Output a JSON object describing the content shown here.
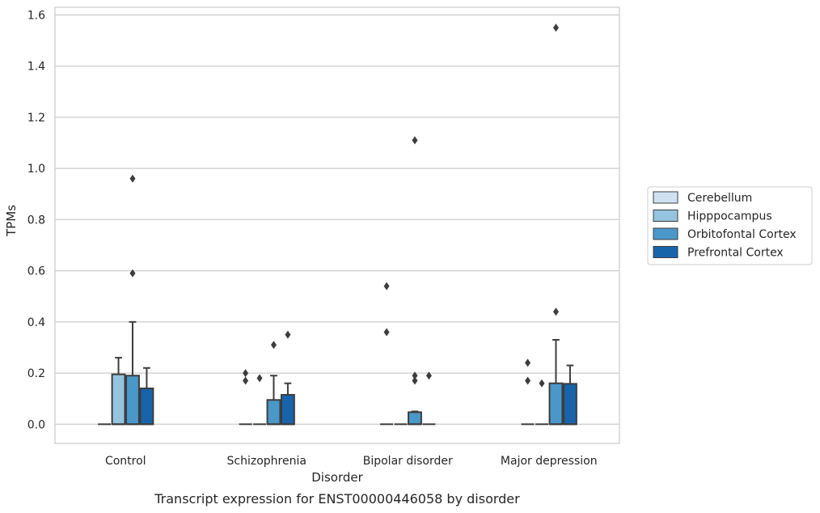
{
  "chart_data": {
    "type": "box",
    "xlabel": "Disorder",
    "ylabel": "TPMs",
    "caption": "Transcript expression for ENST00000446058 by disorder",
    "ylim": [
      -0.075,
      1.63
    ],
    "yticks": [
      0.0,
      0.2,
      0.4,
      0.6,
      0.8,
      1.0,
      1.2,
      1.4,
      1.6
    ],
    "ytick_labels": [
      "0.0",
      "0.2",
      "0.4",
      "0.6",
      "0.8",
      "1.0",
      "1.2",
      "1.4",
      "1.6"
    ],
    "grid": "horizontal",
    "legend_placement": "right",
    "categories": [
      "Control",
      "Schizophrenia",
      "Bipolar disorder",
      "Major depression"
    ],
    "series": [
      {
        "name": "Cerebellum",
        "color": "#d0e1f2",
        "boxes": [
          {
            "q1": 0,
            "median": 0,
            "q3": 0,
            "whislo": 0,
            "whishi": 0,
            "fliers": []
          },
          {
            "q1": 0,
            "median": 0,
            "q3": 0,
            "whislo": 0,
            "whishi": 0,
            "fliers": [
              0.17,
              0.2
            ]
          },
          {
            "q1": 0,
            "median": 0,
            "q3": 0,
            "whislo": 0,
            "whishi": 0,
            "fliers": [
              0.54,
              0.36
            ]
          },
          {
            "q1": 0,
            "median": 0,
            "q3": 0,
            "whislo": 0,
            "whishi": 0,
            "fliers": [
              0.17,
              0.24
            ]
          }
        ]
      },
      {
        "name": "Hipppocampus",
        "color": "#94c4df",
        "boxes": [
          {
            "q1": 0,
            "median": 0,
            "q3": 0.195,
            "whislo": 0,
            "whishi": 0.26,
            "fliers": []
          },
          {
            "q1": 0,
            "median": 0,
            "q3": 0,
            "whislo": 0,
            "whishi": 0,
            "fliers": [
              0.18
            ]
          },
          {
            "q1": 0,
            "median": 0,
            "q3": 0,
            "whislo": 0,
            "whishi": 0,
            "fliers": []
          },
          {
            "q1": 0,
            "median": 0,
            "q3": 0,
            "whislo": 0,
            "whishi": 0,
            "fliers": [
              0.16
            ]
          }
        ]
      },
      {
        "name": "Orbitofontal Cortex",
        "color": "#4a98c9",
        "boxes": [
          {
            "q1": 0,
            "median": 0,
            "q3": 0.19,
            "whislo": 0,
            "whishi": 0.4,
            "fliers": [
              0.59,
              0.96
            ]
          },
          {
            "q1": 0,
            "median": 0,
            "q3": 0.095,
            "whislo": 0,
            "whishi": 0.19,
            "fliers": [
              0.31
            ]
          },
          {
            "q1": 0,
            "median": 0,
            "q3": 0.047,
            "whislo": 0,
            "whishi": 0.05,
            "fliers": [
              0.17,
              0.19,
              1.11
            ]
          },
          {
            "q1": 0,
            "median": 0,
            "q3": 0.16,
            "whislo": 0,
            "whishi": 0.33,
            "fliers": [
              0.44,
              1.55
            ]
          }
        ]
      },
      {
        "name": "Prefrontal Cortex",
        "color": "#1764ab",
        "boxes": [
          {
            "q1": 0,
            "median": 0,
            "q3": 0.14,
            "whislo": 0,
            "whishi": 0.22,
            "fliers": []
          },
          {
            "q1": 0,
            "median": 0,
            "q3": 0.115,
            "whislo": 0,
            "whishi": 0.16,
            "fliers": [
              0.35
            ]
          },
          {
            "q1": 0,
            "median": 0,
            "q3": 0,
            "whislo": 0,
            "whishi": 0,
            "fliers": [
              0.19
            ]
          },
          {
            "q1": 0,
            "median": 0,
            "q3": 0.158,
            "whislo": 0,
            "whishi": 0.23,
            "fliers": []
          }
        ]
      }
    ]
  }
}
